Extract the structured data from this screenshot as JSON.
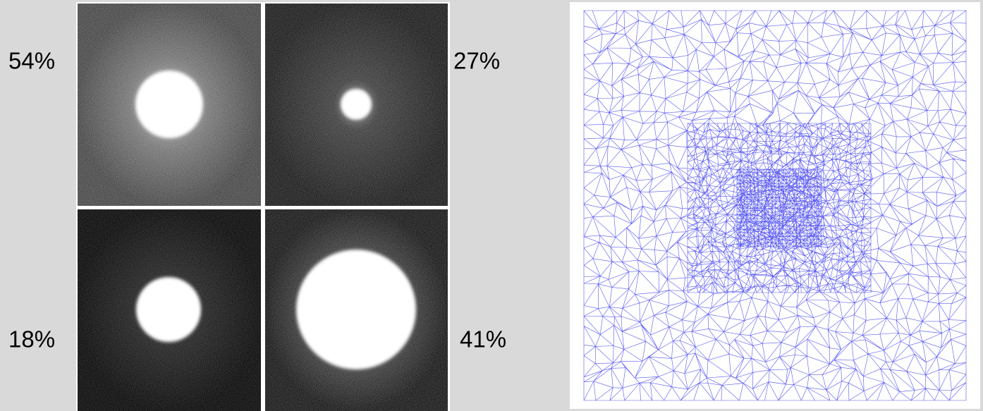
{
  "panels": [
    {
      "label": "54%"
    },
    {
      "label": "27%"
    },
    {
      "label": "18%"
    },
    {
      "label": "41%"
    }
  ]
}
